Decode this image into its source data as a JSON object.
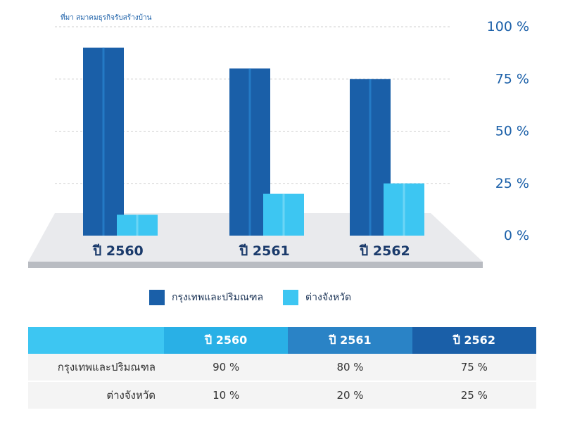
{
  "chart_data": {
    "type": "bar",
    "source_note": "ที่มา สมาคมธุรกิจรับสร้างบ้าน",
    "categories": [
      "ปี 2560",
      "ปี 2561",
      "ปี 2562"
    ],
    "series": [
      {
        "name": "กรุงเทพและปริมณฑล",
        "values": [
          90,
          80,
          75
        ],
        "color": "#1a5fa8"
      },
      {
        "name": "ต่างจังหวัด",
        "values": [
          10,
          20,
          25
        ],
        "color": "#3dc6f2"
      }
    ],
    "ylim": [
      0,
      100
    ],
    "yticks": [
      {
        "value": 100,
        "label": "100  %"
      },
      {
        "value": 75,
        "label": "75  %"
      },
      {
        "value": 50,
        "label": "50  %"
      },
      {
        "value": 25,
        "label": "25  %"
      },
      {
        "value": 0,
        "label": "0  %"
      }
    ],
    "legend_position": "bottom"
  },
  "table": {
    "headers": [
      "",
      "ปี 2560",
      "ปี 2561",
      "ปี 2562"
    ],
    "header_colors": [
      "#3dc6f2",
      "#29b0e6",
      "#2a83c6",
      "#1a5fa8"
    ],
    "rows": [
      {
        "label": "กรุงเทพและปริมณฑล",
        "values": [
          "90  %",
          "80  %",
          "75  %"
        ]
      },
      {
        "label": "ต่างจังหวัด",
        "values": [
          "10  %",
          "20  %",
          "25  %"
        ]
      }
    ]
  }
}
